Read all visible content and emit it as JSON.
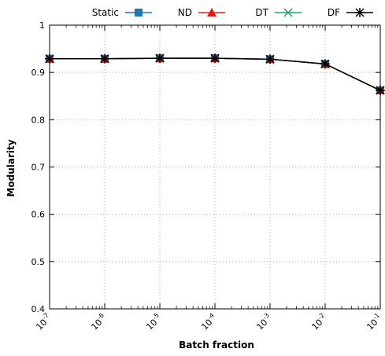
{
  "chart_data": {
    "type": "line",
    "xlabel": "Batch fraction",
    "ylabel": "Modularity",
    "x_scale": "log",
    "x": [
      1e-07,
      1e-06,
      1e-05,
      0.0001,
      0.001,
      0.01,
      0.1
    ],
    "x_tick_bases": [
      "10",
      "10",
      "10",
      "10",
      "10",
      "10",
      "10"
    ],
    "x_tick_exponents": [
      "-7",
      "-6",
      "-5",
      "-4",
      "-3",
      "-2",
      "-1"
    ],
    "y_ticks": [
      "0.4",
      "0.5",
      "0.6",
      "0.7",
      "0.8",
      "0.9",
      "1"
    ],
    "ylim": [
      0.4,
      1
    ],
    "grid": true,
    "legend_position": "top",
    "series": [
      {
        "name": "Static",
        "color": "#1f77b4",
        "marker": "square",
        "values": [
          0.929,
          0.929,
          0.93,
          0.93,
          0.928,
          0.918,
          0.862
        ]
      },
      {
        "name": "ND",
        "color": "#e31a1c",
        "marker": "triangle",
        "values": [
          0.929,
          0.929,
          0.93,
          0.93,
          0.928,
          0.918,
          0.862
        ]
      },
      {
        "name": "DT",
        "color": "#1aa37a",
        "marker": "x",
        "values": [
          0.929,
          0.929,
          0.93,
          0.93,
          0.928,
          0.918,
          0.862
        ]
      },
      {
        "name": "DF",
        "color": "#000000",
        "marker": "asterisk",
        "values": [
          0.929,
          0.929,
          0.93,
          0.93,
          0.928,
          0.918,
          0.862
        ]
      }
    ]
  }
}
